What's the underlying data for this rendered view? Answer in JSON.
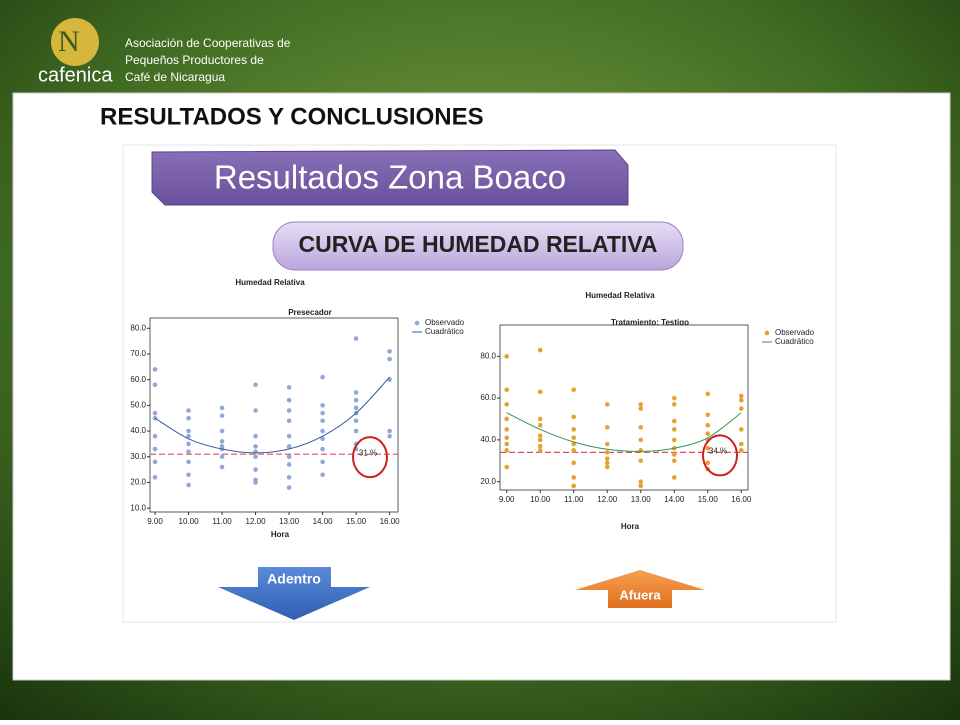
{
  "header": {
    "org_name": "cafenica",
    "org_lines": [
      "Asociación de Cooperativas de",
      "Pequeños Productores de",
      "Café de Nicaragua"
    ]
  },
  "slide": {
    "heading": "RESULTADOS Y  CONCLUSIONES",
    "banner": "Resultados Zona Boaco",
    "subbanner": "CURVA DE HUMEDAD RELATIVA",
    "left_arrow": "Adentro",
    "right_arrow": "Afuera"
  },
  "chart_data": [
    {
      "type": "scatter",
      "title": "Humedad Relativa",
      "subtitle": "Presecador",
      "x_label": "Hora",
      "xlim": [
        8.85,
        16.25
      ],
      "xticks": [
        {
          "value": 9,
          "label": "9.00"
        },
        {
          "value": 10,
          "label": "10.00"
        },
        {
          "value": 11,
          "label": "11.00"
        },
        {
          "value": 12,
          "label": "12.00"
        },
        {
          "value": 13,
          "label": "13.00"
        },
        {
          "value": 14,
          "label": "14.00"
        },
        {
          "value": 15,
          "label": "15.00"
        },
        {
          "value": 16,
          "label": "16.00"
        }
      ],
      "ylim": [
        8.5,
        84
      ],
      "yticks": [
        {
          "value": 10,
          "label": "10.0"
        },
        {
          "value": 20,
          "label": "20.0"
        },
        {
          "value": 30,
          "label": "30.0"
        },
        {
          "value": 40,
          "label": "40.0"
        },
        {
          "value": 50,
          "label": "50.0"
        },
        {
          "value": 60,
          "label": "60.0"
        },
        {
          "value": 70,
          "label": "70.0"
        },
        {
          "value": 80,
          "label": "80.0"
        }
      ],
      "series": [
        {
          "name": "Observado",
          "color": "#8fa8d8",
          "x": [
            9,
            9,
            9,
            9,
            9,
            9,
            9,
            9,
            10,
            10,
            10,
            10,
            10,
            10,
            10,
            10,
            10,
            11,
            11,
            11,
            11,
            11,
            11,
            11,
            11,
            12,
            12,
            12,
            12,
            12,
            12,
            12,
            12,
            12,
            13,
            13,
            13,
            13,
            13,
            13,
            13,
            13,
            13,
            13,
            14,
            14,
            14,
            14,
            14,
            14,
            14,
            14,
            14,
            15,
            15,
            15,
            15,
            15,
            15,
            15,
            15,
            15,
            16,
            16,
            16,
            16,
            16
          ],
          "values": [
            64,
            58,
            47,
            45,
            38,
            33,
            28,
            22,
            48,
            45,
            40,
            38,
            35,
            32,
            28,
            23,
            19,
            49,
            46,
            40,
            36,
            34,
            33,
            30,
            26,
            58,
            48,
            38,
            34,
            32,
            30,
            25,
            21,
            20,
            57,
            52,
            48,
            44,
            38,
            34,
            30,
            27,
            22,
            18,
            61,
            50,
            47,
            44,
            40,
            37,
            33,
            28,
            23,
            76,
            55,
            52,
            49,
            47,
            44,
            40,
            35,
            33,
            71,
            68,
            60,
            40,
            38
          ]
        },
        {
          "name": "Cuadrático",
          "type": "line",
          "color": "#3b5ba0",
          "x": [
            9,
            10,
            11,
            12,
            13,
            14,
            15,
            16
          ],
          "values": [
            45,
            37,
            33,
            31.5,
            33,
            38,
            47,
            61
          ]
        }
      ],
      "reference": {
        "value": 31,
        "label": "31 %",
        "color": "#e05050"
      }
    },
    {
      "type": "scatter",
      "title": "Humedad Relativa",
      "subtitle": "Tratamiento: Testigo",
      "x_label": "Hora",
      "xlim": [
        8.8,
        16.2
      ],
      "xticks": [
        {
          "value": 9,
          "label": "9.00"
        },
        {
          "value": 10,
          "label": "10.00"
        },
        {
          "value": 11,
          "label": "11.00"
        },
        {
          "value": 12,
          "label": "12.00"
        },
        {
          "value": 13,
          "label": "13.00"
        },
        {
          "value": 14,
          "label": "14.00"
        },
        {
          "value": 15,
          "label": "15.00"
        },
        {
          "value": 16,
          "label": "16.00"
        }
      ],
      "ylim": [
        16,
        95
      ],
      "yticks": [
        {
          "value": 20,
          "label": "20.0"
        },
        {
          "value": 40,
          "label": "40.0"
        },
        {
          "value": 60,
          "label": "60.0"
        },
        {
          "value": 80,
          "label": "80.0"
        }
      ],
      "series": [
        {
          "name": "Observado",
          "color": "#e8a030",
          "x": [
            9,
            9,
            9,
            9,
            9,
            9,
            9,
            9,
            9,
            10,
            10,
            10,
            10,
            10,
            10,
            10,
            10,
            11,
            11,
            11,
            11,
            11,
            11,
            11,
            11,
            11,
            12,
            12,
            12,
            12,
            12,
            12,
            12,
            13,
            13,
            13,
            13,
            13,
            13,
            13,
            13,
            14,
            14,
            14,
            14,
            14,
            14,
            14,
            14,
            14,
            15,
            15,
            15,
            15,
            15,
            15,
            15,
            15,
            16,
            16,
            16,
            16,
            16,
            16
          ],
          "values": [
            80,
            64,
            57,
            50,
            45,
            41,
            38,
            35,
            27,
            83,
            63,
            50,
            47,
            42,
            40,
            37,
            35,
            64,
            51,
            45,
            41,
            38,
            35,
            29,
            22,
            18,
            57,
            46,
            38,
            34,
            31,
            29,
            27,
            57,
            55,
            46,
            40,
            35,
            30,
            20,
            18,
            60,
            57,
            49,
            45,
            40,
            36,
            33,
            30,
            22,
            62,
            52,
            47,
            43,
            40,
            36,
            29,
            26,
            61,
            59,
            55,
            45,
            38,
            35
          ]
        },
        {
          "name": "Cuadrático",
          "type": "line",
          "color": "#2a9a50",
          "x": [
            9,
            10,
            11,
            12,
            13,
            14,
            15,
            16
          ],
          "values": [
            53,
            45,
            39,
            35.5,
            34.5,
            36,
            41,
            53
          ]
        }
      ],
      "reference": {
        "value": 34,
        "label": "34 %",
        "color": "#e05050"
      }
    }
  ]
}
